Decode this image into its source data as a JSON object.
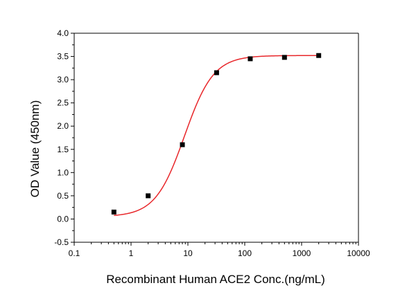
{
  "chart_data": {
    "type": "scatter",
    "xlabel": "Recombinant Human ACE2 Conc.(ng/mL)",
    "ylabel": "OD Value (450nm)",
    "x_scale": "log",
    "xlim": [
      0.1,
      10000
    ],
    "ylim": [
      -0.5,
      4.0
    ],
    "x_ticks": [
      0.1,
      1,
      10,
      100,
      1000,
      10000
    ],
    "x_tick_labels": [
      "0.1",
      "1",
      "10",
      "100",
      "1000",
      "10000"
    ],
    "y_ticks": [
      -0.5,
      0.0,
      0.5,
      1.0,
      1.5,
      2.0,
      2.5,
      3.0,
      3.5,
      4.0
    ],
    "y_tick_labels": [
      "-0.5",
      "0.0",
      "0.5",
      "1.0",
      "1.5",
      "2.0",
      "2.5",
      "3.0",
      "3.5",
      "4.0"
    ],
    "series": [
      {
        "x": [
          0.5,
          2,
          8,
          32,
          125,
          500,
          2000
        ],
        "y": [
          0.15,
          0.5,
          1.6,
          3.15,
          3.45,
          3.48,
          3.52
        ],
        "marker": "square",
        "color": "#000000"
      }
    ],
    "fit_curve": {
      "model": "4PL",
      "bottom": 0.05,
      "top": 3.52,
      "ec50": 8.7,
      "hill": 1.7,
      "color": "#e8262a"
    },
    "grid": false
  }
}
